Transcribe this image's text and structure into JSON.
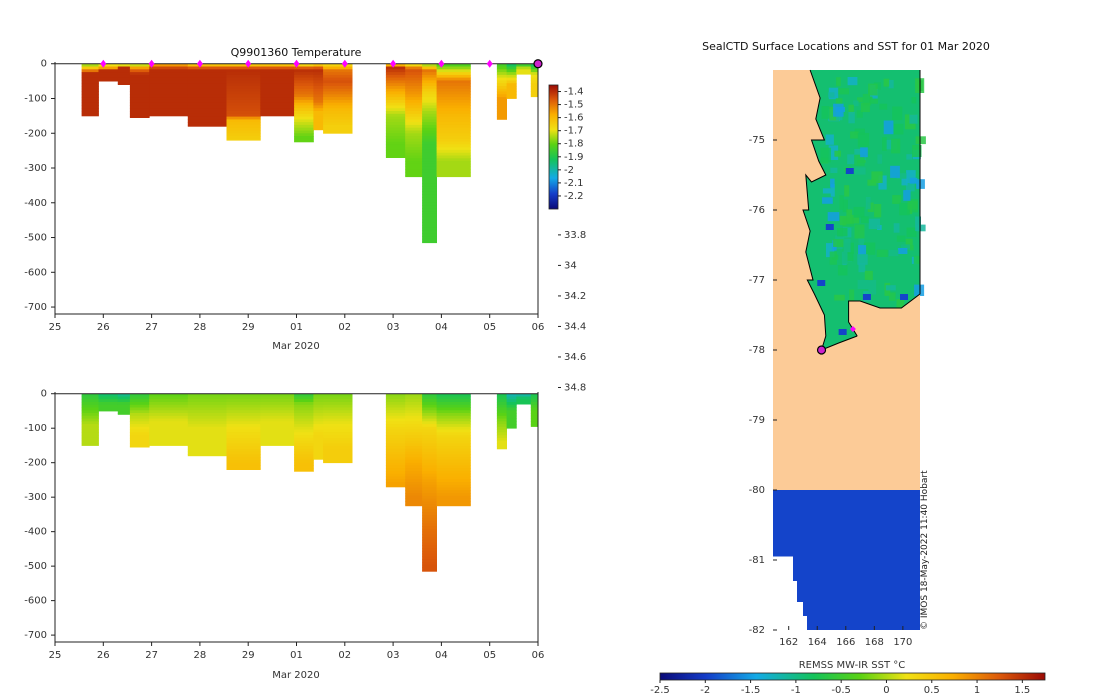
{
  "chart_data": [
    {
      "type": "heatmap",
      "title": "Q9901360  Temperature",
      "xlabel": "Mar 2020",
      "ylabel": "",
      "x_tick_labels": [
        "25",
        "26",
        "27",
        "28",
        "29",
        "01",
        "02",
        "03",
        "04",
        "05",
        "06"
      ],
      "x_range_days": [
        0,
        10
      ],
      "y_ticks": [
        0,
        -100,
        -200,
        -300,
        -400,
        -500,
        -600,
        -700
      ],
      "ylim": [
        -720,
        5
      ],
      "colorbar": {
        "min": -2.3,
        "max": -1.35,
        "ticks": [
          -1.4,
          -1.5,
          -1.6,
          -1.7,
          -1.8,
          -1.9,
          -2,
          -2.1,
          -2.2
        ]
      },
      "surface_markers_day": [
        1,
        2,
        3,
        4,
        5,
        6,
        7,
        8,
        9
      ],
      "profiles": [
        {
          "x0": 0.55,
          "x1": 0.9,
          "depth": 150,
          "c": [
            [
              0,
              -1.8
            ],
            [
              15,
              -1.6
            ],
            [
              25,
              -1.4
            ]
          ]
        },
        {
          "x0": 0.9,
          "x1": 1.3,
          "depth": 50,
          "c": [
            [
              0,
              -1.75
            ],
            [
              10,
              -1.6
            ],
            [
              20,
              -1.4
            ]
          ]
        },
        {
          "x0": 1.3,
          "x1": 1.55,
          "depth": 60,
          "c": [
            [
              0,
              -1.9
            ],
            [
              10,
              -1.4
            ]
          ]
        },
        {
          "x0": 1.55,
          "x1": 1.95,
          "depth": 155,
          "c": [
            [
              0,
              -1.8
            ],
            [
              15,
              -1.5
            ],
            [
              30,
              -1.4
            ]
          ]
        },
        {
          "x0": 1.95,
          "x1": 2.75,
          "depth": 150,
          "c": [
            [
              0,
              -1.6
            ],
            [
              15,
              -1.4
            ]
          ]
        },
        {
          "x0": 2.75,
          "x1": 3.55,
          "depth": 180,
          "c": [
            [
              0,
              -1.7
            ],
            [
              15,
              -1.4
            ]
          ]
        },
        {
          "x0": 3.55,
          "x1": 4.25,
          "depth": 220,
          "c": [
            [
              0,
              -1.7
            ],
            [
              15,
              -1.4
            ],
            [
              150,
              -1.45
            ],
            [
              160,
              -1.6
            ],
            [
              220,
              -1.65
            ]
          ]
        },
        {
          "x0": 4.25,
          "x1": 4.95,
          "depth": 150,
          "c": [
            [
              0,
              -1.7
            ],
            [
              15,
              -1.4
            ]
          ]
        },
        {
          "x0": 4.95,
          "x1": 5.35,
          "depth": 225,
          "c": [
            [
              0,
              -1.75
            ],
            [
              15,
              -1.4
            ],
            [
              90,
              -1.5
            ],
            [
              120,
              -1.6
            ],
            [
              160,
              -1.7
            ],
            [
              210,
              -1.8
            ]
          ]
        },
        {
          "x0": 5.35,
          "x1": 5.55,
          "depth": 190,
          "c": [
            [
              0,
              -1.7
            ],
            [
              15,
              -1.4
            ],
            [
              110,
              -1.5
            ],
            [
              140,
              -1.6
            ]
          ]
        },
        {
          "x0": 5.55,
          "x1": 6.15,
          "depth": 200,
          "c": [
            [
              0,
              -1.7
            ],
            [
              20,
              -1.5
            ],
            [
              50,
              -1.45
            ],
            [
              80,
              -1.5
            ],
            [
              130,
              -1.6
            ],
            [
              180,
              -1.65
            ]
          ]
        },
        {
          "x0": 6.85,
          "x1": 7.25,
          "depth": 270,
          "c": [
            [
              0,
              -1.7
            ],
            [
              10,
              -1.4
            ],
            [
              110,
              -1.65
            ],
            [
              150,
              -1.75
            ],
            [
              230,
              -1.8
            ]
          ]
        },
        {
          "x0": 7.25,
          "x1": 7.6,
          "depth": 325,
          "c": [
            [
              0,
              -1.75
            ],
            [
              15,
              -1.45
            ],
            [
              90,
              -1.55
            ],
            [
              120,
              -1.6
            ],
            [
              200,
              -1.75
            ],
            [
              280,
              -1.8
            ]
          ]
        },
        {
          "x0": 7.6,
          "x1": 7.9,
          "depth": 515,
          "c": [
            [
              0,
              -1.8
            ],
            [
              20,
              -1.5
            ],
            [
              80,
              -1.65
            ],
            [
              140,
              -1.75
            ],
            [
              230,
              -1.85
            ]
          ]
        },
        {
          "x0": 7.9,
          "x1": 8.6,
          "depth": 325,
          "c": [
            [
              0,
              -1.85
            ],
            [
              50,
              -1.5
            ],
            [
              100,
              -1.55
            ],
            [
              150,
              -1.6
            ],
            [
              220,
              -1.65
            ],
            [
              280,
              -1.75
            ]
          ]
        },
        {
          "x0": 9.15,
          "x1": 9.35,
          "depth": 160,
          "c": [
            [
              0,
              -1.85
            ],
            [
              40,
              -1.7
            ],
            [
              100,
              -1.55
            ]
          ]
        },
        {
          "x0": 9.35,
          "x1": 9.55,
          "depth": 100,
          "c": [
            [
              0,
              -1.95
            ],
            [
              30,
              -1.75
            ],
            [
              60,
              -1.6
            ]
          ]
        },
        {
          "x0": 9.55,
          "x1": 9.85,
          "depth": 30,
          "c": [
            [
              0,
              -1.9
            ],
            [
              15,
              -1.7
            ]
          ]
        },
        {
          "x0": 9.85,
          "x1": 10.0,
          "depth": 95,
          "c": [
            [
              0,
              -1.95
            ],
            [
              30,
              -1.7
            ],
            [
              60,
              -1.65
            ]
          ]
        }
      ]
    },
    {
      "type": "heatmap",
      "title": "",
      "xlabel": "Mar 2020",
      "ylabel": "",
      "x_tick_labels": [
        "25",
        "26",
        "27",
        "28",
        "29",
        "01",
        "02",
        "03",
        "04",
        "05",
        "06"
      ],
      "x_range_days": [
        0,
        10
      ],
      "y_ticks": [
        0,
        -100,
        -200,
        -300,
        -400,
        -500,
        -600,
        -700
      ],
      "ylim": [
        -720,
        5
      ],
      "colorbar": {
        "min": 33.65,
        "max": 35.0,
        "ticks": [
          34.8,
          34.6,
          34.4,
          34.2,
          34,
          33.8
        ]
      },
      "profiles": [
        {
          "x0": 0.55,
          "x1": 0.9,
          "depth": 150,
          "c": [
            [
              0,
              34.25
            ],
            [
              90,
              34.45
            ]
          ]
        },
        {
          "x0": 0.9,
          "x1": 1.3,
          "depth": 50,
          "c": [
            [
              0,
              34.15
            ],
            [
              30,
              34.3
            ]
          ]
        },
        {
          "x0": 1.3,
          "x1": 1.55,
          "depth": 60,
          "c": [
            [
              0,
              34.1
            ],
            [
              30,
              34.3
            ]
          ]
        },
        {
          "x0": 1.55,
          "x1": 1.95,
          "depth": 155,
          "c": [
            [
              0,
              34.25
            ],
            [
              60,
              34.45
            ],
            [
              120,
              34.55
            ]
          ]
        },
        {
          "x0": 1.95,
          "x1": 2.75,
          "depth": 150,
          "c": [
            [
              0,
              34.35
            ],
            [
              80,
              34.5
            ]
          ]
        },
        {
          "x0": 2.75,
          "x1": 3.55,
          "depth": 180,
          "c": [
            [
              0,
              34.38
            ],
            [
              100,
              34.5
            ]
          ]
        },
        {
          "x0": 3.55,
          "x1": 4.25,
          "depth": 220,
          "c": [
            [
              0,
              34.38
            ],
            [
              100,
              34.52
            ],
            [
              200,
              34.62
            ]
          ]
        },
        {
          "x0": 4.25,
          "x1": 4.95,
          "depth": 150,
          "c": [
            [
              0,
              34.38
            ],
            [
              80,
              34.5
            ]
          ]
        },
        {
          "x0": 4.95,
          "x1": 5.35,
          "depth": 225,
          "c": [
            [
              0,
              34.25
            ],
            [
              30,
              34.4
            ],
            [
              140,
              34.55
            ],
            [
              200,
              34.62
            ]
          ]
        },
        {
          "x0": 5.35,
          "x1": 5.55,
          "depth": 190,
          "c": [
            [
              0,
              34.38
            ],
            [
              120,
              34.55
            ]
          ]
        },
        {
          "x0": 5.55,
          "x1": 6.15,
          "depth": 200,
          "c": [
            [
              0,
              34.38
            ],
            [
              80,
              34.5
            ],
            [
              160,
              34.58
            ]
          ]
        },
        {
          "x0": 6.85,
          "x1": 7.25,
          "depth": 270,
          "c": [
            [
              0,
              34.4
            ],
            [
              100,
              34.55
            ],
            [
              200,
              34.65
            ],
            [
              260,
              34.7
            ]
          ]
        },
        {
          "x0": 7.25,
          "x1": 7.6,
          "depth": 325,
          "c": [
            [
              0,
              34.42
            ],
            [
              100,
              34.55
            ],
            [
              200,
              34.68
            ],
            [
              300,
              34.75
            ]
          ]
        },
        {
          "x0": 7.6,
          "x1": 7.9,
          "depth": 515,
          "c": [
            [
              0,
              34.25
            ],
            [
              100,
              34.55
            ],
            [
              250,
              34.7
            ],
            [
              400,
              34.8
            ],
            [
              500,
              34.85
            ]
          ]
        },
        {
          "x0": 7.9,
          "x1": 8.6,
          "depth": 325,
          "c": [
            [
              0,
              34.2
            ],
            [
              60,
              34.4
            ],
            [
              120,
              34.55
            ],
            [
              220,
              34.65
            ],
            [
              300,
              34.72
            ]
          ]
        },
        {
          "x0": 9.15,
          "x1": 9.35,
          "depth": 160,
          "c": [
            [
              0,
              34.2
            ],
            [
              80,
              34.4
            ],
            [
              140,
              34.5
            ]
          ]
        },
        {
          "x0": 9.35,
          "x1": 9.55,
          "depth": 100,
          "c": [
            [
              0,
              34.05
            ],
            [
              50,
              34.3
            ]
          ]
        },
        {
          "x0": 9.55,
          "x1": 9.85,
          "depth": 30,
          "c": [
            [
              0,
              34.05
            ],
            [
              15,
              34.2
            ]
          ]
        },
        {
          "x0": 9.85,
          "x1": 10.0,
          "depth": 95,
          "c": [
            [
              0,
              34.2
            ],
            [
              50,
              34.35
            ]
          ]
        }
      ]
    },
    {
      "type": "heatmap",
      "title": "SealCTD Surface Locations and SST for 01 Mar 2020",
      "xlabel": "",
      "ylabel": "",
      "x_ticks": [
        162,
        164,
        166,
        168,
        170
      ],
      "y_ticks": [
        -75,
        -76,
        -77,
        -78,
        -79,
        -80,
        -81,
        -82
      ],
      "xlim": [
        160.9,
        171.2
      ],
      "ylim": [
        -82,
        -74.0
      ],
      "colorbar": {
        "label": "REMSS MW-IR SST °C",
        "min": -2.5,
        "max": 1.75,
        "ticks": [
          -2.5,
          -2,
          -1.5,
          -1,
          -0.5,
          0,
          0.5,
          1,
          1.5
        ]
      },
      "ice_shelf_lat": -80,
      "seal_positions": [
        [
          164.3,
          -78.0
        ],
        [
          166.5,
          -77.7
        ]
      ],
      "credit": "© IMOS 18-May-2022 11:40 Hobart"
    }
  ]
}
